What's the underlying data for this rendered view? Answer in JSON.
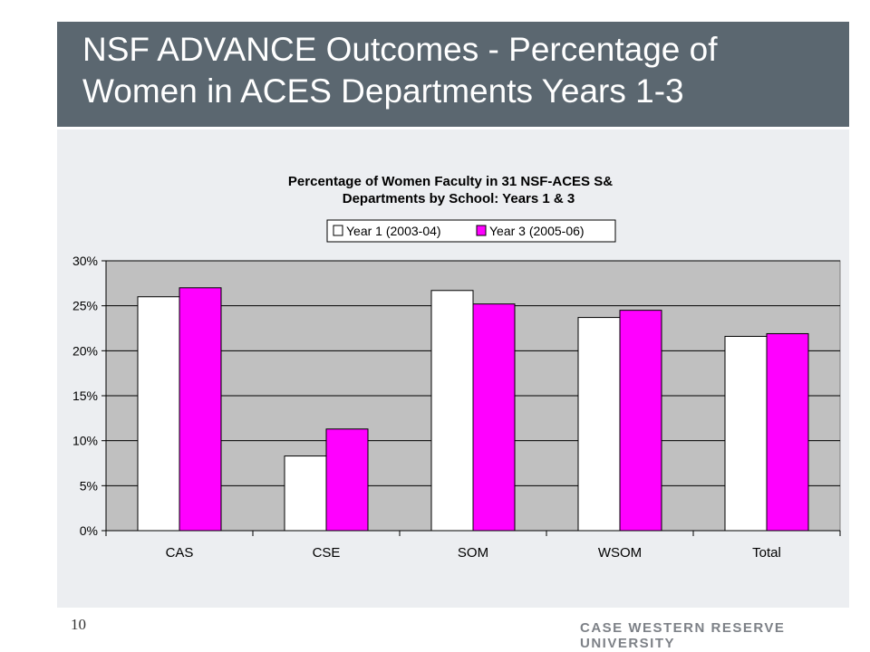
{
  "slide": {
    "title": "NSF ADVANCE Outcomes - Percentage of Women in ACES Departments Years 1-3",
    "page_number": "10",
    "brand": "CASE WESTERN RESERVE UNIVERSITY"
  },
  "colors": {
    "title_bar": "#5b6770",
    "panel": "#eceef1",
    "plot_area": "#c0c0c0",
    "year1": "#ffffff",
    "year3": "#ff00ff"
  },
  "chart_data": {
    "type": "bar",
    "title_line1": "Percentage of Women Faculty in 31 NSF-ACES S&",
    "title_line2": "Departments by School: Years 1 & 3",
    "categories": [
      "CAS",
      "CSE",
      "SOM",
      "WSOM",
      "Total"
    ],
    "series": [
      {
        "name": "Year 1 (2003-04)",
        "color": "#ffffff",
        "values": [
          26.0,
          8.3,
          26.7,
          23.7,
          21.6
        ]
      },
      {
        "name": "Year 3 (2005-06)",
        "color": "#ff00ff",
        "values": [
          27.0,
          11.3,
          25.2,
          24.5,
          21.9
        ]
      }
    ],
    "yticks": [
      "0%",
      "5%",
      "10%",
      "15%",
      "20%",
      "25%",
      "30%"
    ],
    "ylim": [
      0,
      30
    ],
    "grid": true,
    "legend_position": "top"
  }
}
